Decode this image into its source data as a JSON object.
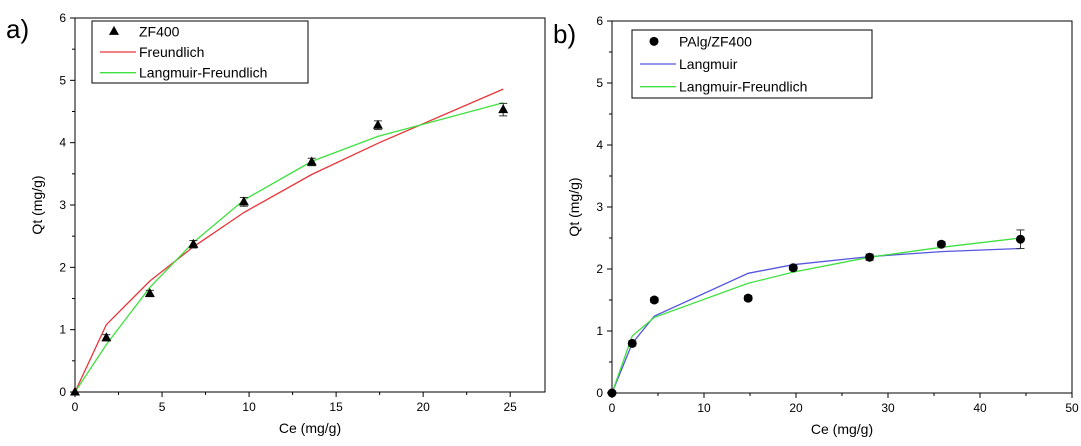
{
  "figure": {
    "labels": [
      "a)",
      "b)"
    ]
  },
  "chart_data": [
    {
      "type": "scatter",
      "panel": "a)",
      "xlabel": "Ce (mg/g)",
      "ylabel": "Qt (mg/g)",
      "xlim": [
        0,
        27
      ],
      "ylim": [
        0,
        6
      ],
      "xticks": [
        0,
        5,
        10,
        15,
        20,
        25
      ],
      "yticks": [
        0,
        1,
        2,
        3,
        4,
        5,
        6
      ],
      "legend_position": "top-left",
      "series": [
        {
          "name": "ZF400",
          "kind": "marker",
          "marker": "triangle",
          "color": "#000000",
          "x": [
            0,
            1.8,
            4.3,
            6.8,
            9.7,
            13.6,
            17.4,
            24.6
          ],
          "y": [
            0,
            0.87,
            1.58,
            2.37,
            3.05,
            3.69,
            4.28,
            4.53
          ],
          "err": [
            0,
            0.05,
            0.05,
            0.06,
            0.07,
            0.06,
            0.07,
            0.1
          ]
        },
        {
          "name": "Freundlich",
          "kind": "line",
          "color": "#e8353a",
          "x": [
            0,
            1.8,
            4.3,
            6.8,
            9.7,
            13.6,
            17.4,
            24.6
          ],
          "y": [
            0,
            1.08,
            1.78,
            2.33,
            2.88,
            3.49,
            3.99,
            4.86
          ]
        },
        {
          "name": "Langmuir-Freundlich",
          "kind": "line",
          "color": "#3fe03f",
          "x": [
            0,
            1.8,
            4.3,
            6.8,
            9.7,
            13.6,
            17.4,
            24.6
          ],
          "y": [
            0,
            0.76,
            1.68,
            2.4,
            3.08,
            3.7,
            4.1,
            4.64
          ]
        }
      ]
    },
    {
      "type": "scatter",
      "panel": "b)",
      "xlabel": "Ce (mg/g)",
      "ylabel": "Qt (mg/g)",
      "xlim": [
        0,
        50
      ],
      "ylim": [
        0,
        6
      ],
      "xticks": [
        0,
        10,
        20,
        30,
        40,
        50
      ],
      "yticks": [
        0,
        1,
        2,
        3,
        4,
        5,
        6
      ],
      "legend_position": "top-left",
      "series": [
        {
          "name": "PAlg/ZF400",
          "kind": "marker",
          "marker": "circle",
          "color": "#000000",
          "x": [
            0,
            2.2,
            4.6,
            14.8,
            19.7,
            28.0,
            35.8,
            44.4
          ],
          "y": [
            0,
            0.8,
            1.5,
            1.53,
            2.02,
            2.19,
            2.4,
            2.48
          ],
          "err": [
            0,
            0.04,
            0.04,
            0.04,
            0.04,
            0.05,
            0.04,
            0.15
          ]
        },
        {
          "name": "Langmuir",
          "kind": "line",
          "color": "#5555e0",
          "x": [
            0,
            2.2,
            4.6,
            14.8,
            19.7,
            28.0,
            35.8,
            44.4
          ],
          "y": [
            0,
            0.8,
            1.24,
            1.93,
            2.07,
            2.2,
            2.28,
            2.33
          ]
        },
        {
          "name": "Langmuir-Freundlich",
          "kind": "line",
          "color": "#3fe03f",
          "x": [
            0,
            2.2,
            4.6,
            14.8,
            19.7,
            28.0,
            35.8,
            44.4
          ],
          "y": [
            0,
            0.92,
            1.22,
            1.77,
            1.95,
            2.19,
            2.35,
            2.5
          ]
        }
      ]
    }
  ]
}
